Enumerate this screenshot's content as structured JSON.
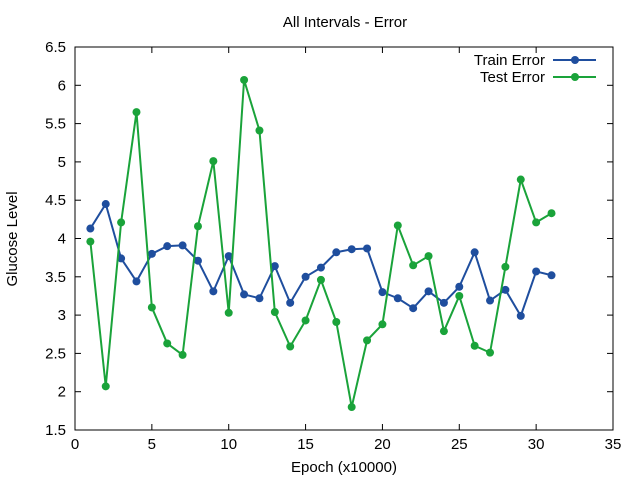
{
  "chart_data": {
    "type": "line",
    "title": "All Intervals - Error",
    "xlabel": "Epoch (x10000)",
    "ylabel": "Glucose Level",
    "xlim": [
      0,
      35
    ],
    "ylim": [
      1.5,
      6.5
    ],
    "xticks": [
      "0",
      "5",
      "10",
      "15",
      "20",
      "25",
      "30",
      "35"
    ],
    "yticks": [
      "1.5",
      "2",
      "2.5",
      "3",
      "3.5",
      "4",
      "4.5",
      "5",
      "5.5",
      "6",
      "6.5"
    ],
    "grid": false,
    "legend_position": "top-right",
    "x": [
      1,
      2,
      3,
      4,
      5,
      6,
      7,
      8,
      9,
      10,
      11,
      12,
      13,
      14,
      15,
      16,
      17,
      18,
      19,
      20,
      21,
      22,
      23,
      24,
      25,
      26,
      27,
      28,
      29,
      30,
      31
    ],
    "series": [
      {
        "name": "Train Error",
        "color": "#1f4e9e",
        "values": [
          4.13,
          4.45,
          3.74,
          3.44,
          3.8,
          3.9,
          3.91,
          3.71,
          3.31,
          3.77,
          3.27,
          3.22,
          3.64,
          3.16,
          3.5,
          3.62,
          3.82,
          3.86,
          3.87,
          3.3,
          3.22,
          3.09,
          3.31,
          3.16,
          3.37,
          3.82,
          3.19,
          3.33,
          2.99,
          3.57,
          3.52
        ]
      },
      {
        "name": "Test Error",
        "color": "#1aa33a",
        "values": [
          3.96,
          2.07,
          4.21,
          5.65,
          3.1,
          2.63,
          2.48,
          4.16,
          5.01,
          3.03,
          6.07,
          5.41,
          3.04,
          2.59,
          2.93,
          3.46,
          2.91,
          1.8,
          2.67,
          2.88,
          4.17,
          3.65,
          3.77,
          2.79,
          3.25,
          2.6,
          2.51,
          3.63,
          4.77,
          4.21,
          4.33
        ]
      }
    ]
  }
}
